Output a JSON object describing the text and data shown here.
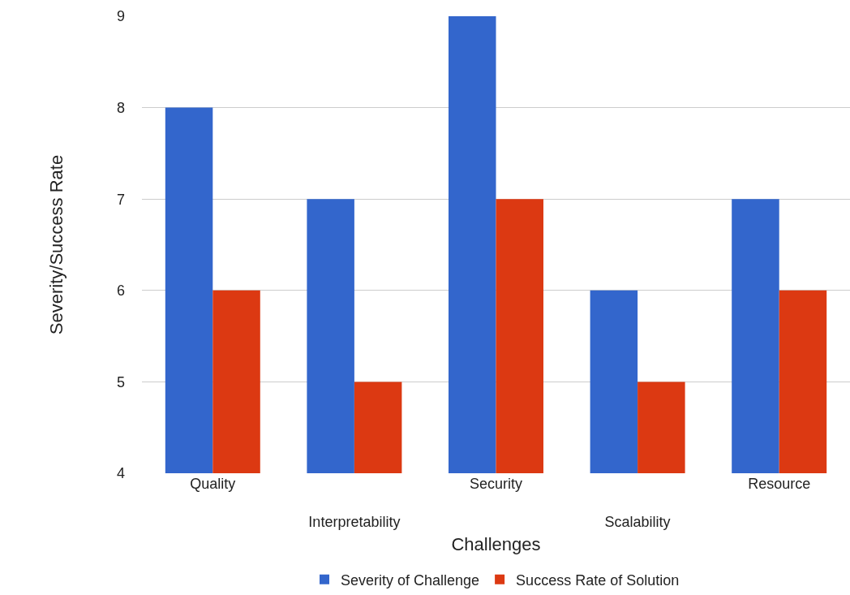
{
  "chart_data": {
    "type": "bar",
    "xlabel": "Challenges",
    "ylabel": "Severity/Success Rate",
    "categories": [
      "Quality",
      "Interpretability",
      "Security",
      "Scalability",
      "Resource"
    ],
    "series": [
      {
        "name": "Severity of Challenge",
        "color": "#3366cc",
        "values": [
          8,
          7,
          9,
          6,
          7
        ]
      },
      {
        "name": "Success Rate of Solution",
        "color": "#dc3912",
        "values": [
          6,
          5,
          7,
          5,
          6
        ]
      }
    ],
    "ylim": [
      4,
      9
    ],
    "yticks": [
      4,
      5,
      6,
      7,
      8,
      9
    ],
    "grid": "y",
    "legend": "bottom"
  }
}
